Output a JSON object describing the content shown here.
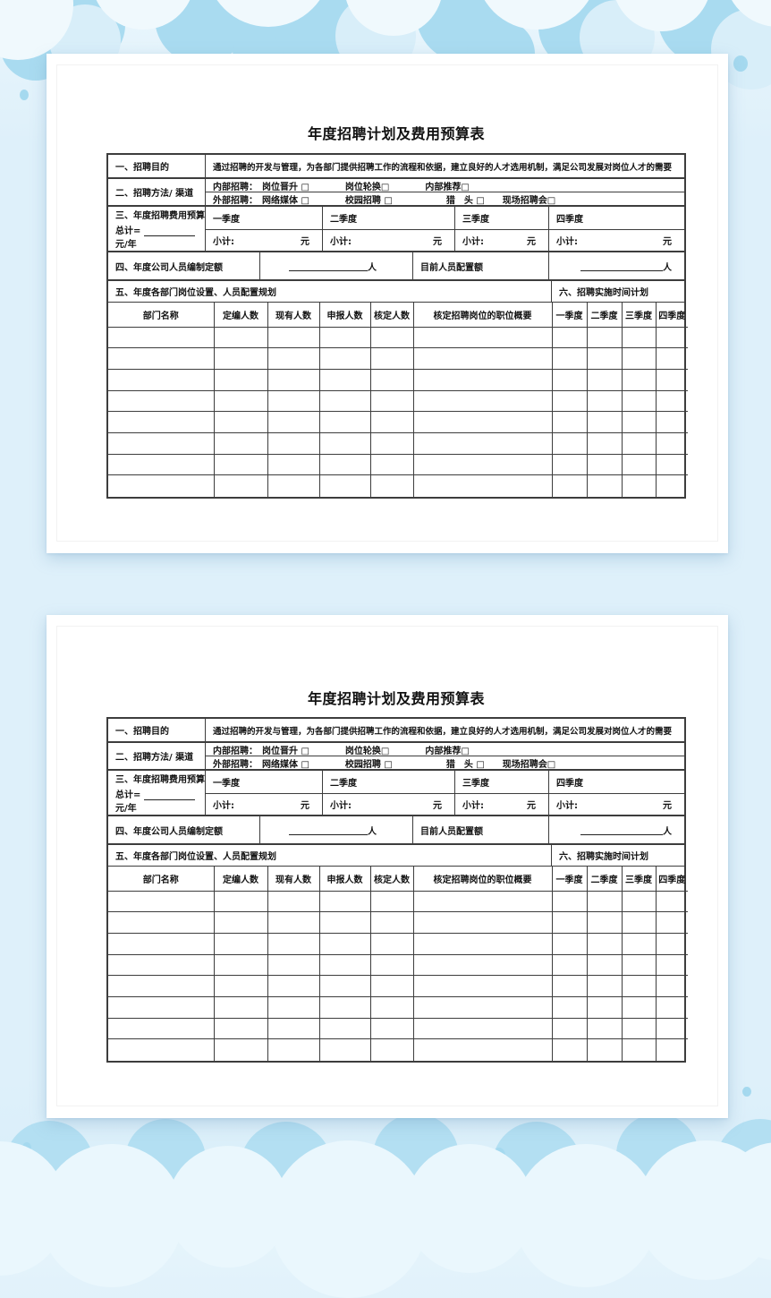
{
  "colors": {
    "background": "#def0fa",
    "cloud_medium": "#a9dbf0",
    "cloud_light": "#d8eef9",
    "cloud_white": "#f0f9fd",
    "paper": "#ffffff",
    "table_border": "#3d3d3d"
  },
  "page": {
    "title": "年度招聘计划及费用预算表",
    "section1": {
      "label": "一、招聘目的",
      "content": "通过招聘的开发与管理，为各部门提供招聘工作的流程和依据，建立良好的人才选用机制，满足公司发展对岗位人才的需要"
    },
    "section2": {
      "label": "二、招聘方法/ 渠道",
      "internal": "内部招聘：　岗位晋升 □　　　　岗位轮换□　　　　内部推荐□",
      "external": "外部招聘：　网络媒体 □　　　　校园招聘 □　　　　　　猎　头 □　　现场招聘会□"
    },
    "section3": {
      "label": "三、年度招聘费用预算",
      "total_prefix": "总计=",
      "total_suffix": "元/年",
      "quarters": [
        "一季度",
        "二季度",
        "三季度",
        "四季度"
      ],
      "subtotal_label": "小计:",
      "unit_yuan": "元"
    },
    "section4": {
      "label": "四、年度公司人员编制定额",
      "current_label": "目前人员配置额",
      "unit_person": "人"
    },
    "section5": {
      "title": "五、年度各部门岗位设置、人员配置规划"
    },
    "section6": {
      "title": "六、招聘实施时间计划"
    },
    "grid": {
      "headers": [
        "部门名称",
        "定编人数",
        "现有人数",
        "申报人数",
        "核定人数",
        "核定招聘岗位的职位概要",
        "一季度",
        "二季度",
        "三季度",
        "四季度"
      ],
      "empty_row_count": 8
    }
  }
}
